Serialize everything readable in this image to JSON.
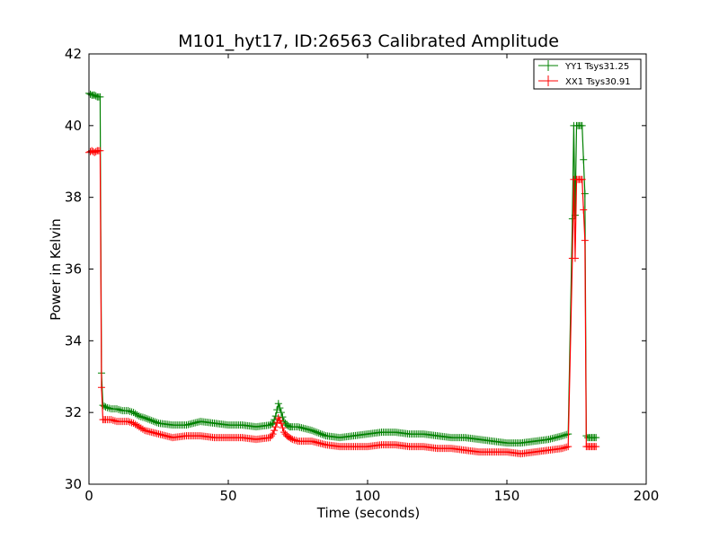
{
  "chart_data": {
    "type": "line",
    "title": "M101_hyt17, ID:26563 Calibrated Amplitude",
    "xlabel": "Time (seconds)",
    "ylabel": "Power in Kelvin",
    "xlim": [
      0,
      200
    ],
    "ylim": [
      30,
      42
    ],
    "xticks": [
      "0",
      "50",
      "100",
      "150",
      "200"
    ],
    "yticks": [
      "30",
      "32",
      "34",
      "36",
      "38",
      "40",
      "42"
    ],
    "grid": false,
    "legend_position": "top-right",
    "marker": "+",
    "series": [
      {
        "name": "YY1 Tsys31.25",
        "color": "#008000",
        "x": [
          0,
          1,
          2,
          3,
          4,
          4.5,
          5,
          6,
          8,
          10,
          12,
          14,
          16,
          18,
          20,
          25,
          30,
          35,
          40,
          45,
          50,
          55,
          60,
          65,
          66,
          67,
          68,
          69,
          70,
          71,
          72,
          73,
          75,
          80,
          85,
          90,
          95,
          100,
          105,
          110,
          115,
          120,
          125,
          130,
          135,
          140,
          145,
          150,
          155,
          160,
          165,
          170,
          172,
          173.5,
          174,
          174.5,
          175,
          176,
          177,
          178,
          178.5,
          179,
          180,
          181,
          182
        ],
        "y": [
          40.9,
          40.85,
          40.85,
          40.8,
          40.8,
          33.1,
          32.2,
          32.15,
          32.1,
          32.1,
          32.05,
          32.05,
          32.0,
          31.9,
          31.85,
          31.7,
          31.65,
          31.65,
          31.75,
          31.7,
          31.65,
          31.65,
          31.6,
          31.65,
          31.7,
          31.9,
          32.25,
          32.0,
          31.75,
          31.65,
          31.6,
          31.6,
          31.6,
          31.5,
          31.35,
          31.3,
          31.35,
          31.4,
          31.45,
          31.45,
          31.4,
          31.4,
          31.35,
          31.3,
          31.3,
          31.25,
          31.2,
          31.15,
          31.15,
          31.2,
          31.25,
          31.35,
          31.4,
          37.4,
          40.0,
          37.5,
          40.0,
          40.0,
          40.0,
          38.1,
          31.35,
          31.3,
          31.3,
          31.3,
          31.3
        ]
      },
      {
        "name": "XX1 Tsys30.91",
        "color": "#ff0000",
        "x": [
          0,
          1,
          2,
          3,
          4,
          4.5,
          5,
          6,
          8,
          10,
          12,
          14,
          16,
          18,
          20,
          25,
          30,
          35,
          40,
          45,
          50,
          55,
          60,
          65,
          66,
          67,
          68,
          69,
          70,
          71,
          72,
          73,
          75,
          80,
          85,
          90,
          95,
          100,
          105,
          110,
          115,
          120,
          125,
          130,
          135,
          140,
          145,
          150,
          155,
          160,
          165,
          170,
          172,
          173.5,
          174,
          174.5,
          175,
          176,
          177,
          178,
          178.5,
          179,
          180,
          181,
          182
        ],
        "y": [
          39.25,
          39.3,
          39.25,
          39.3,
          39.3,
          32.7,
          31.8,
          31.8,
          31.8,
          31.75,
          31.75,
          31.75,
          31.7,
          31.6,
          31.5,
          31.4,
          31.3,
          31.35,
          31.35,
          31.3,
          31.3,
          31.3,
          31.25,
          31.3,
          31.4,
          31.6,
          31.85,
          31.7,
          31.45,
          31.35,
          31.3,
          31.25,
          31.2,
          31.2,
          31.1,
          31.05,
          31.05,
          31.05,
          31.1,
          31.1,
          31.05,
          31.05,
          31.0,
          31.0,
          30.95,
          30.9,
          30.9,
          30.9,
          30.85,
          30.9,
          30.95,
          31.0,
          31.05,
          36.3,
          38.5,
          36.3,
          38.5,
          38.5,
          38.5,
          36.8,
          31.05,
          31.05,
          31.05,
          31.05,
          31.05
        ]
      }
    ]
  }
}
